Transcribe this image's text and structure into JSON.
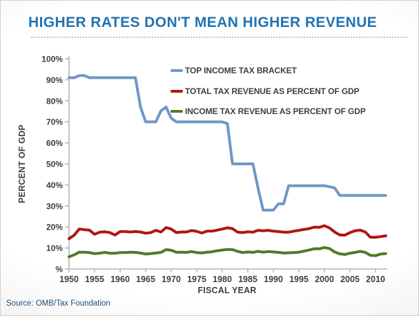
{
  "page": {
    "title": "HIGHER RATES DON'T MEAN HIGHER REVENUE",
    "source": "Source: OMB/Tax Foundation",
    "colors": {
      "title": "#2273B2",
      "source": "#1F4E79",
      "axis": "#b3b3b3",
      "text": "#3e3e3e"
    }
  },
  "chart_data": {
    "type": "line",
    "title": "HIGHER RATES DON'T MEAN HIGHER REVENUE",
    "xlabel": "FISCAL YEAR",
    "ylabel": "PERCENT OF GDP",
    "xlim": [
      1950,
      2012
    ],
    "ylim": [
      0,
      100
    ],
    "grid": false,
    "legend_position": "top-right-inside",
    "x_ticks": [
      1950,
      1955,
      1960,
      1965,
      1970,
      1975,
      1980,
      1985,
      1990,
      1995,
      2000,
      2005,
      2010
    ],
    "y_tick_values": [
      0,
      10,
      20,
      30,
      40,
      50,
      60,
      70,
      80,
      90,
      100
    ],
    "y_tick_labels": [
      "%",
      "10%",
      "20%",
      "30%",
      "40%",
      "50%",
      "60%",
      "70%",
      "80%",
      "90%",
      "100%"
    ],
    "x": [
      1950,
      1951,
      1952,
      1953,
      1954,
      1955,
      1956,
      1957,
      1958,
      1959,
      1960,
      1961,
      1962,
      1963,
      1964,
      1965,
      1966,
      1967,
      1968,
      1969,
      1970,
      1971,
      1972,
      1973,
      1974,
      1975,
      1976,
      1977,
      1978,
      1979,
      1980,
      1981,
      1982,
      1983,
      1984,
      1985,
      1986,
      1987,
      1988,
      1989,
      1990,
      1991,
      1992,
      1993,
      1994,
      1995,
      1996,
      1997,
      1998,
      1999,
      2000,
      2001,
      2002,
      2003,
      2004,
      2005,
      2006,
      2007,
      2008,
      2009,
      2010,
      2011,
      2012
    ],
    "series": [
      {
        "name": "TOP INCOME TAX BRACKET",
        "color": "#7097C6",
        "values": [
          91,
          91,
          92,
          92,
          91,
          91,
          91,
          91,
          91,
          91,
          91,
          91,
          91,
          91,
          77,
          70,
          70,
          70,
          75.25,
          77,
          71.75,
          70,
          70,
          70,
          70,
          70,
          70,
          70,
          70,
          70,
          70,
          69.13,
          50,
          50,
          50,
          50,
          50,
          38.5,
          28,
          28,
          28,
          31,
          31,
          39.6,
          39.6,
          39.6,
          39.6,
          39.6,
          39.6,
          39.6,
          39.6,
          39.1,
          38.6,
          35,
          35,
          35,
          35,
          35,
          35,
          35,
          35,
          35,
          35
        ]
      },
      {
        "name": "TOTAL TAX REVENUE AS PERCENT OF GDP",
        "color": "#B01511",
        "values": [
          14.4,
          16.1,
          19.0,
          18.7,
          18.5,
          16.5,
          17.5,
          17.7,
          17.3,
          16.2,
          17.8,
          17.8,
          17.6,
          17.8,
          17.6,
          17.0,
          17.3,
          18.4,
          17.6,
          19.7,
          19.0,
          17.3,
          17.6,
          17.6,
          18.3,
          17.9,
          17.1,
          18.0,
          18.0,
          18.5,
          19.0,
          19.6,
          19.2,
          17.5,
          17.3,
          17.7,
          17.5,
          18.4,
          18.2,
          18.4,
          18.0,
          17.8,
          17.5,
          17.5,
          18.0,
          18.4,
          18.8,
          19.2,
          19.9,
          19.8,
          20.6,
          19.5,
          17.6,
          16.2,
          16.1,
          17.3,
          18.2,
          18.5,
          17.6,
          15.1,
          15.1,
          15.4,
          15.8
        ]
      },
      {
        "name": "INCOME TAX REVENUE AS PERCENT OF GDP",
        "color": "#4E7B27",
        "values": [
          5.8,
          6.7,
          8.0,
          8.0,
          7.8,
          7.3,
          7.5,
          7.9,
          7.5,
          7.5,
          7.8,
          7.8,
          8.0,
          7.9,
          7.6,
          7.1,
          7.3,
          7.6,
          7.9,
          9.2,
          8.9,
          8.0,
          8.0,
          7.9,
          8.3,
          7.8,
          7.6,
          8.0,
          8.2,
          8.7,
          9.0,
          9.3,
          9.2,
          8.4,
          7.8,
          8.1,
          7.9,
          8.4,
          8.0,
          8.3,
          8.1,
          7.9,
          7.6,
          7.7,
          7.8,
          8.0,
          8.5,
          9.0,
          9.6,
          9.6,
          10.2,
          9.7,
          8.1,
          7.2,
          6.9,
          7.5,
          7.9,
          8.4,
          7.9,
          6.5,
          6.3,
          7.1,
          7.3
        ]
      }
    ]
  }
}
